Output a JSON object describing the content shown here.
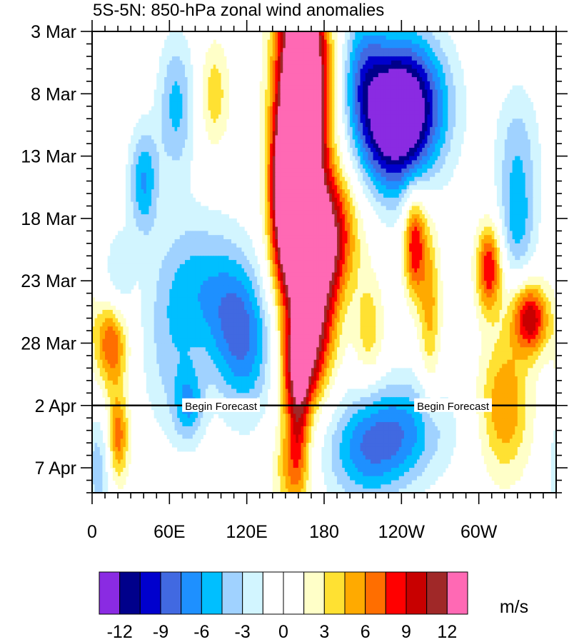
{
  "chart_data": {
    "type": "heatmap",
    "title": "5S-5N: 850-hPa zonal wind anomalies",
    "x_tick_labels": [
      "0",
      "60E",
      "120E",
      "180",
      "120W",
      "60W"
    ],
    "x_ticks_deg": [
      0,
      60,
      120,
      180,
      240,
      300
    ],
    "xlim_deg": [
      0,
      360
    ],
    "y_tick_labels": [
      "3 Mar",
      "8 Mar",
      "13 Mar",
      "18 Mar",
      "23 Mar",
      "28 Mar",
      "2 Apr",
      "7 Apr"
    ],
    "y_ticks_day": [
      0,
      5,
      10,
      15,
      20,
      25,
      30,
      35
    ],
    "ylim_day": [
      0,
      37
    ],
    "forecast_start_day": 30,
    "forecast_labels": [
      "Begin Forecast",
      "Begin Forecast"
    ],
    "forecast_label_lon": [
      100,
      280
    ],
    "colorbar": {
      "unit": "m/s",
      "tick_labels": [
        "-12",
        "-9",
        "-6",
        "-3",
        "0",
        "3",
        "6",
        "9",
        "12"
      ],
      "colors": [
        "#8a2be2",
        "#00008b",
        "#0000cd",
        "#4169e1",
        "#1e90ff",
        "#00bfff",
        "#a0d2ff",
        "#d2f5ff",
        "#ffffff",
        "#ffffff",
        "#ffffc8",
        "#ffe132",
        "#ffaa00",
        "#ff6e00",
        "#ff0000",
        "#c80000",
        "#a02828",
        "#ff69b4"
      ]
    },
    "anomaly_features": [
      {
        "lon": 163,
        "day": 6,
        "dlon": 14,
        "dday": 7,
        "value": 13
      },
      {
        "lon": 158,
        "day": 12,
        "dlon": 9,
        "dday": 4,
        "value": 12
      },
      {
        "lon": 163,
        "day": 3,
        "dlon": 13,
        "dday": 6,
        "value": 10
      },
      {
        "lon": 150,
        "day": 13,
        "dlon": 9,
        "dday": 4,
        "value": 9
      },
      {
        "lon": 180,
        "day": 16,
        "dlon": 17,
        "dday": 3.5,
        "value": 11
      },
      {
        "lon": 165,
        "day": 19,
        "dlon": 16,
        "dday": 3,
        "value": 8
      },
      {
        "lon": 170,
        "day": 24,
        "dlon": 13,
        "dday": 3.5,
        "value": 10
      },
      {
        "lon": 160,
        "day": 27,
        "dlon": 10,
        "dday": 3,
        "value": 8
      },
      {
        "lon": 160,
        "day": 31,
        "dlon": 6,
        "dday": 4,
        "value": 5
      },
      {
        "lon": 155,
        "day": 35,
        "dlon": 10,
        "dday": 3,
        "value": 5
      },
      {
        "lon": 250,
        "day": 17,
        "dlon": 6,
        "dday": 3,
        "value": 9
      },
      {
        "lon": 262,
        "day": 22,
        "dlon": 6,
        "dday": 5,
        "value": 5
      },
      {
        "lon": 308,
        "day": 19,
        "dlon": 7,
        "dday": 2.5,
        "value": 9
      },
      {
        "lon": 340,
        "day": 23,
        "dlon": 10,
        "dday": 2,
        "value": 10
      },
      {
        "lon": 320,
        "day": 30,
        "dlon": 14,
        "dday": 4,
        "value": 6
      },
      {
        "lon": 15,
        "day": 25,
        "dlon": 9,
        "dday": 2.5,
        "value": 8
      },
      {
        "lon": 20,
        "day": 32.5,
        "dlon": 6,
        "dday": 2.5,
        "value": 7
      },
      {
        "lon": 95,
        "day": 5,
        "dlon": 8,
        "dday": 3,
        "value": 4
      },
      {
        "lon": 215,
        "day": 24,
        "dlon": 8,
        "dday": 3,
        "value": 4
      },
      {
        "lon": 245,
        "day": 6,
        "dlon": 22,
        "dday": 4,
        "value": -12
      },
      {
        "lon": 230,
        "day": 8,
        "dlon": 18,
        "dday": 4,
        "value": -7
      },
      {
        "lon": 210,
        "day": 3,
        "dlon": 12,
        "dday": 4,
        "value": -5
      },
      {
        "lon": 40,
        "day": 12,
        "dlon": 8,
        "dday": 3,
        "value": -6
      },
      {
        "lon": 65,
        "day": 6,
        "dlon": 10,
        "dday": 4,
        "value": -5
      },
      {
        "lon": 80,
        "day": 20,
        "dlon": 22,
        "dday": 4,
        "value": -4
      },
      {
        "lon": 110,
        "day": 23,
        "dlon": 18,
        "dday": 4,
        "value": -5
      },
      {
        "lon": 120,
        "day": 26,
        "dlon": 15,
        "dday": 4,
        "value": -4
      },
      {
        "lon": 240,
        "day": 32,
        "dlon": 26,
        "dday": 3,
        "value": -6
      },
      {
        "lon": 210,
        "day": 34,
        "dlon": 22,
        "dday": 3,
        "value": -5
      },
      {
        "lon": 75,
        "day": 30,
        "dlon": 8,
        "dday": 2,
        "value": -5
      },
      {
        "lon": 5,
        "day": 35,
        "dlon": 7,
        "dday": 3,
        "value": -4
      },
      {
        "lon": 330,
        "day": 10,
        "dlon": 12,
        "dday": 4,
        "value": -4
      },
      {
        "lon": 330,
        "day": 16,
        "dlon": 10,
        "dday": 3,
        "value": -4
      },
      {
        "lon": 60,
        "day": 26,
        "dlon": 16,
        "dday": 5,
        "value": -3
      },
      {
        "lon": 20,
        "day": 20,
        "dlon": 8,
        "dday": 3,
        "value": -3
      }
    ]
  }
}
